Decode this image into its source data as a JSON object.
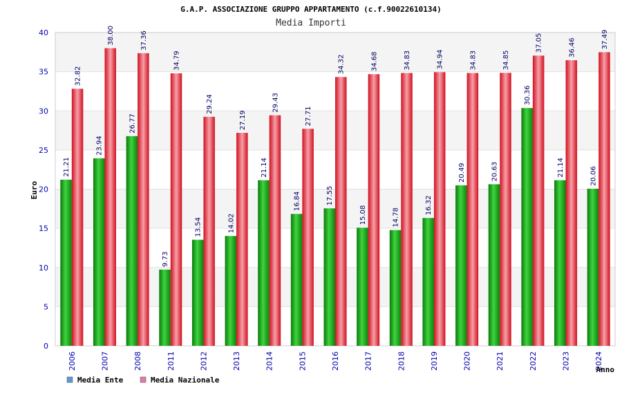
{
  "chart_data": {
    "type": "bar",
    "title": "G.A.P. ASSOCIAZIONE GRUPPO APPARTAMENTO (c.f.90022610134)",
    "subtitle": "Media Importi",
    "xlabel": "Anno",
    "ylabel": "Euro",
    "ylim": [
      0,
      40
    ],
    "yticks": [
      0,
      5,
      10,
      15,
      20,
      25,
      30,
      35,
      40
    ],
    "grid": true,
    "legend_position": "bottom-left",
    "categories": [
      "2006",
      "2007",
      "2008",
      "2011",
      "2012",
      "2013",
      "2014",
      "2015",
      "2016",
      "2017",
      "2018",
      "2019",
      "2020",
      "2021",
      "2022",
      "2023",
      "2024"
    ],
    "series": [
      {
        "name": "Media Ente",
        "color": "#16a516",
        "legend_color": "#5b9bd5",
        "values": [
          21.21,
          23.94,
          26.77,
          9.73,
          13.54,
          14.02,
          21.14,
          16.84,
          17.55,
          15.08,
          14.78,
          16.32,
          20.49,
          20.63,
          30.36,
          21.14,
          20.06
        ],
        "labels": [
          "21.21",
          "23.94",
          "26.77",
          "9.73",
          "13.54",
          "14.02",
          "21.14",
          "16.84",
          "17.55",
          "15.08",
          "14.78",
          "16.32",
          "20.49",
          "20.63",
          "30.36",
          "21.14",
          "20.06"
        ]
      },
      {
        "name": "Media Nazionale",
        "color": "#e0202c",
        "legend_color": "#e07aa8",
        "values": [
          32.82,
          38.0,
          37.36,
          34.79,
          29.24,
          27.19,
          29.43,
          27.71,
          34.32,
          34.68,
          34.83,
          34.94,
          34.83,
          34.85,
          37.05,
          36.46,
          37.49
        ],
        "labels": [
          "32.82",
          "38.00",
          "37.36",
          "34.79",
          "29.24",
          "27.19",
          "29.43",
          "27.71",
          "34.32",
          "34.68",
          "34.83",
          "34.94",
          "34.83",
          "34.85",
          "37.05",
          "36.46",
          "37.49"
        ]
      }
    ]
  }
}
